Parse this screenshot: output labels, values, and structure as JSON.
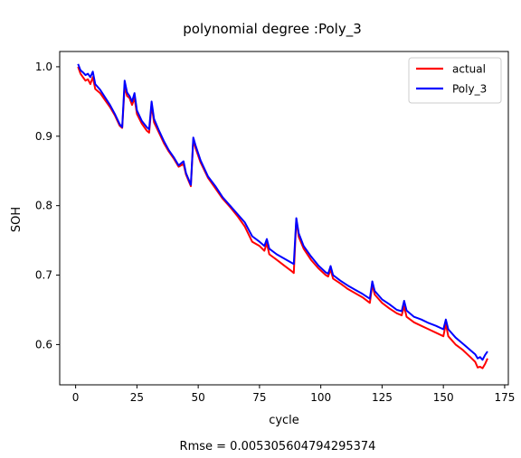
{
  "chart_data": {
    "type": "line",
    "title": "polynomial degree :Poly_3",
    "xlabel": "cycle",
    "ylabel": "SOH",
    "footer": "Rmse = 0.005305604794295374",
    "xlim": [
      -6.5,
      176.5
    ],
    "ylim": [
      0.542,
      1.022
    ],
    "xticks": [
      0,
      25,
      50,
      75,
      100,
      125,
      150,
      175
    ],
    "yticks": [
      0.6,
      0.7,
      0.8,
      0.9,
      1.0
    ],
    "xtick_labels": [
      "0",
      "25",
      "50",
      "75",
      "100",
      "125",
      "150",
      "175"
    ],
    "ytick_labels": [
      "0.6",
      "0.7",
      "0.8",
      "0.9",
      "1.0"
    ],
    "grid": false,
    "legend_position": "top-right",
    "series": [
      {
        "name": "actual",
        "color": "#ff0000",
        "points": [
          [
            1,
            1.0
          ],
          [
            2,
            0.99
          ],
          [
            3,
            0.985
          ],
          [
            4,
            0.98
          ],
          [
            5,
            0.982
          ],
          [
            6,
            0.975
          ],
          [
            7,
            0.985
          ],
          [
            8,
            0.968
          ],
          [
            10,
            0.962
          ],
          [
            12,
            0.952
          ],
          [
            14,
            0.942
          ],
          [
            16,
            0.93
          ],
          [
            18,
            0.915
          ],
          [
            19,
            0.912
          ],
          [
            20,
            0.972
          ],
          [
            21,
            0.958
          ],
          [
            22,
            0.955
          ],
          [
            23,
            0.945
          ],
          [
            24,
            0.955
          ],
          [
            25,
            0.932
          ],
          [
            27,
            0.918
          ],
          [
            29,
            0.908
          ],
          [
            30,
            0.905
          ],
          [
            31,
            0.945
          ],
          [
            32,
            0.92
          ],
          [
            34,
            0.905
          ],
          [
            36,
            0.89
          ],
          [
            38,
            0.878
          ],
          [
            40,
            0.868
          ],
          [
            42,
            0.856
          ],
          [
            44,
            0.86
          ],
          [
            45,
            0.845
          ],
          [
            47,
            0.828
          ],
          [
            48,
            0.895
          ],
          [
            49,
            0.882
          ],
          [
            51,
            0.862
          ],
          [
            54,
            0.84
          ],
          [
            57,
            0.825
          ],
          [
            60,
            0.81
          ],
          [
            63,
            0.798
          ],
          [
            66,
            0.785
          ],
          [
            69,
            0.77
          ],
          [
            72,
            0.748
          ],
          [
            75,
            0.742
          ],
          [
            77,
            0.735
          ],
          [
            78,
            0.746
          ],
          [
            79,
            0.73
          ],
          [
            82,
            0.722
          ],
          [
            85,
            0.714
          ],
          [
            88,
            0.706
          ],
          [
            89,
            0.703
          ],
          [
            90,
            0.78
          ],
          [
            91,
            0.755
          ],
          [
            93,
            0.738
          ],
          [
            96,
            0.722
          ],
          [
            99,
            0.71
          ],
          [
            102,
            0.7
          ],
          [
            103,
            0.698
          ],
          [
            104,
            0.708
          ],
          [
            105,
            0.695
          ],
          [
            108,
            0.688
          ],
          [
            111,
            0.68
          ],
          [
            114,
            0.674
          ],
          [
            117,
            0.668
          ],
          [
            120,
            0.66
          ],
          [
            121,
            0.686
          ],
          [
            122,
            0.672
          ],
          [
            125,
            0.66
          ],
          [
            128,
            0.652
          ],
          [
            131,
            0.645
          ],
          [
            133,
            0.642
          ],
          [
            134,
            0.655
          ],
          [
            135,
            0.64
          ],
          [
            138,
            0.632
          ],
          [
            141,
            0.627
          ],
          [
            144,
            0.622
          ],
          [
            147,
            0.617
          ],
          [
            150,
            0.612
          ],
          [
            151,
            0.63
          ],
          [
            152,
            0.612
          ],
          [
            155,
            0.6
          ],
          [
            158,
            0.592
          ],
          [
            161,
            0.582
          ],
          [
            163,
            0.575
          ],
          [
            164,
            0.567
          ],
          [
            165,
            0.568
          ],
          [
            166,
            0.566
          ],
          [
            167,
            0.572
          ],
          [
            168,
            0.58
          ]
        ]
      },
      {
        "name": "Poly_3",
        "color": "#0000ff",
        "points": [
          [
            1,
            1.004
          ],
          [
            2,
            0.995
          ],
          [
            3,
            0.992
          ],
          [
            4,
            0.988
          ],
          [
            5,
            0.99
          ],
          [
            6,
            0.985
          ],
          [
            7,
            0.993
          ],
          [
            8,
            0.975
          ],
          [
            10,
            0.967
          ],
          [
            12,
            0.956
          ],
          [
            14,
            0.945
          ],
          [
            16,
            0.932
          ],
          [
            18,
            0.917
          ],
          [
            19,
            0.913
          ],
          [
            20,
            0.98
          ],
          [
            21,
            0.963
          ],
          [
            22,
            0.958
          ],
          [
            23,
            0.95
          ],
          [
            24,
            0.962
          ],
          [
            25,
            0.937
          ],
          [
            27,
            0.922
          ],
          [
            29,
            0.913
          ],
          [
            30,
            0.91
          ],
          [
            31,
            0.95
          ],
          [
            32,
            0.925
          ],
          [
            34,
            0.908
          ],
          [
            36,
            0.893
          ],
          [
            38,
            0.88
          ],
          [
            40,
            0.87
          ],
          [
            42,
            0.858
          ],
          [
            44,
            0.864
          ],
          [
            45,
            0.847
          ],
          [
            47,
            0.83
          ],
          [
            48,
            0.898
          ],
          [
            49,
            0.886
          ],
          [
            51,
            0.865
          ],
          [
            54,
            0.842
          ],
          [
            57,
            0.828
          ],
          [
            60,
            0.812
          ],
          [
            63,
            0.8
          ],
          [
            66,
            0.788
          ],
          [
            69,
            0.776
          ],
          [
            72,
            0.756
          ],
          [
            75,
            0.748
          ],
          [
            77,
            0.742
          ],
          [
            78,
            0.752
          ],
          [
            79,
            0.738
          ],
          [
            82,
            0.73
          ],
          [
            85,
            0.724
          ],
          [
            88,
            0.718
          ],
          [
            89,
            0.716
          ],
          [
            90,
            0.782
          ],
          [
            91,
            0.76
          ],
          [
            93,
            0.742
          ],
          [
            96,
            0.727
          ],
          [
            99,
            0.714
          ],
          [
            102,
            0.704
          ],
          [
            103,
            0.702
          ],
          [
            104,
            0.713
          ],
          [
            105,
            0.7
          ],
          [
            108,
            0.692
          ],
          [
            111,
            0.685
          ],
          [
            114,
            0.679
          ],
          [
            117,
            0.673
          ],
          [
            120,
            0.666
          ],
          [
            121,
            0.691
          ],
          [
            122,
            0.677
          ],
          [
            125,
            0.665
          ],
          [
            128,
            0.658
          ],
          [
            131,
            0.65
          ],
          [
            133,
            0.648
          ],
          [
            134,
            0.663
          ],
          [
            135,
            0.649
          ],
          [
            138,
            0.64
          ],
          [
            141,
            0.636
          ],
          [
            144,
            0.631
          ],
          [
            147,
            0.627
          ],
          [
            150,
            0.622
          ],
          [
            151,
            0.636
          ],
          [
            152,
            0.622
          ],
          [
            155,
            0.61
          ],
          [
            158,
            0.601
          ],
          [
            161,
            0.592
          ],
          [
            163,
            0.586
          ],
          [
            164,
            0.58
          ],
          [
            165,
            0.582
          ],
          [
            166,
            0.578
          ],
          [
            167,
            0.585
          ],
          [
            168,
            0.59
          ]
        ]
      }
    ]
  }
}
